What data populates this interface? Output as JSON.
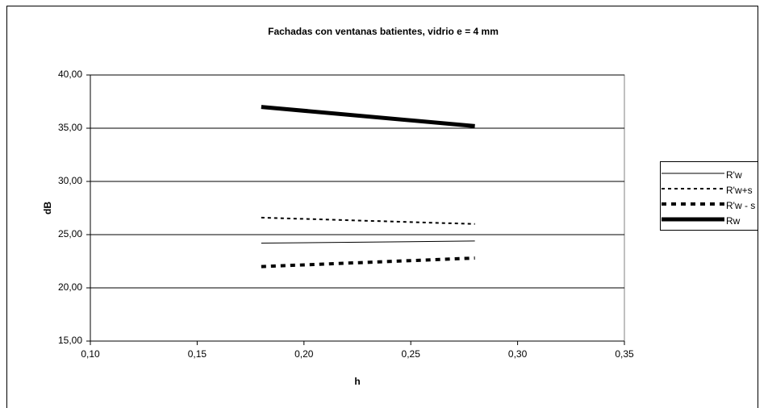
{
  "chart_data": {
    "type": "line",
    "title": "Fachadas con ventanas batientes,  vidrio e = 4 mm",
    "x_label": "h",
    "y_label": "dB",
    "x": [
      0.18,
      0.28
    ],
    "series": [
      {
        "name": "R'w",
        "color": "#000000",
        "values": [
          24.2,
          24.4
        ]
      },
      {
        "name": "R'w+s",
        "color": "#000000",
        "values": [
          26.6,
          26.0
        ]
      },
      {
        "name": "R'w - s",
        "color": "#000000",
        "values": [
          22.0,
          22.8
        ]
      },
      {
        "name": "Rw",
        "color": "#000000",
        "values": [
          37.0,
          35.2
        ]
      }
    ],
    "xlim": [
      0.1,
      0.35
    ],
    "xticks": [
      {
        "value": 0.1,
        "label": "0,10"
      },
      {
        "value": 0.15,
        "label": "0,15"
      },
      {
        "value": 0.2,
        "label": "0,20"
      },
      {
        "value": 0.25,
        "label": "0,25"
      },
      {
        "value": 0.3,
        "label": "0,30"
      },
      {
        "value": 0.35,
        "label": "0,35"
      }
    ],
    "ylim": [
      15,
      40
    ],
    "yticks": [
      {
        "value": 15,
        "label": "15,00"
      },
      {
        "value": 20,
        "label": "20,00"
      },
      {
        "value": 25,
        "label": "25,00"
      },
      {
        "value": 30,
        "label": "30,00"
      },
      {
        "value": 35,
        "label": "35,00"
      },
      {
        "value": 40,
        "label": "40,00"
      }
    ],
    "grid": true,
    "legend": "right"
  }
}
